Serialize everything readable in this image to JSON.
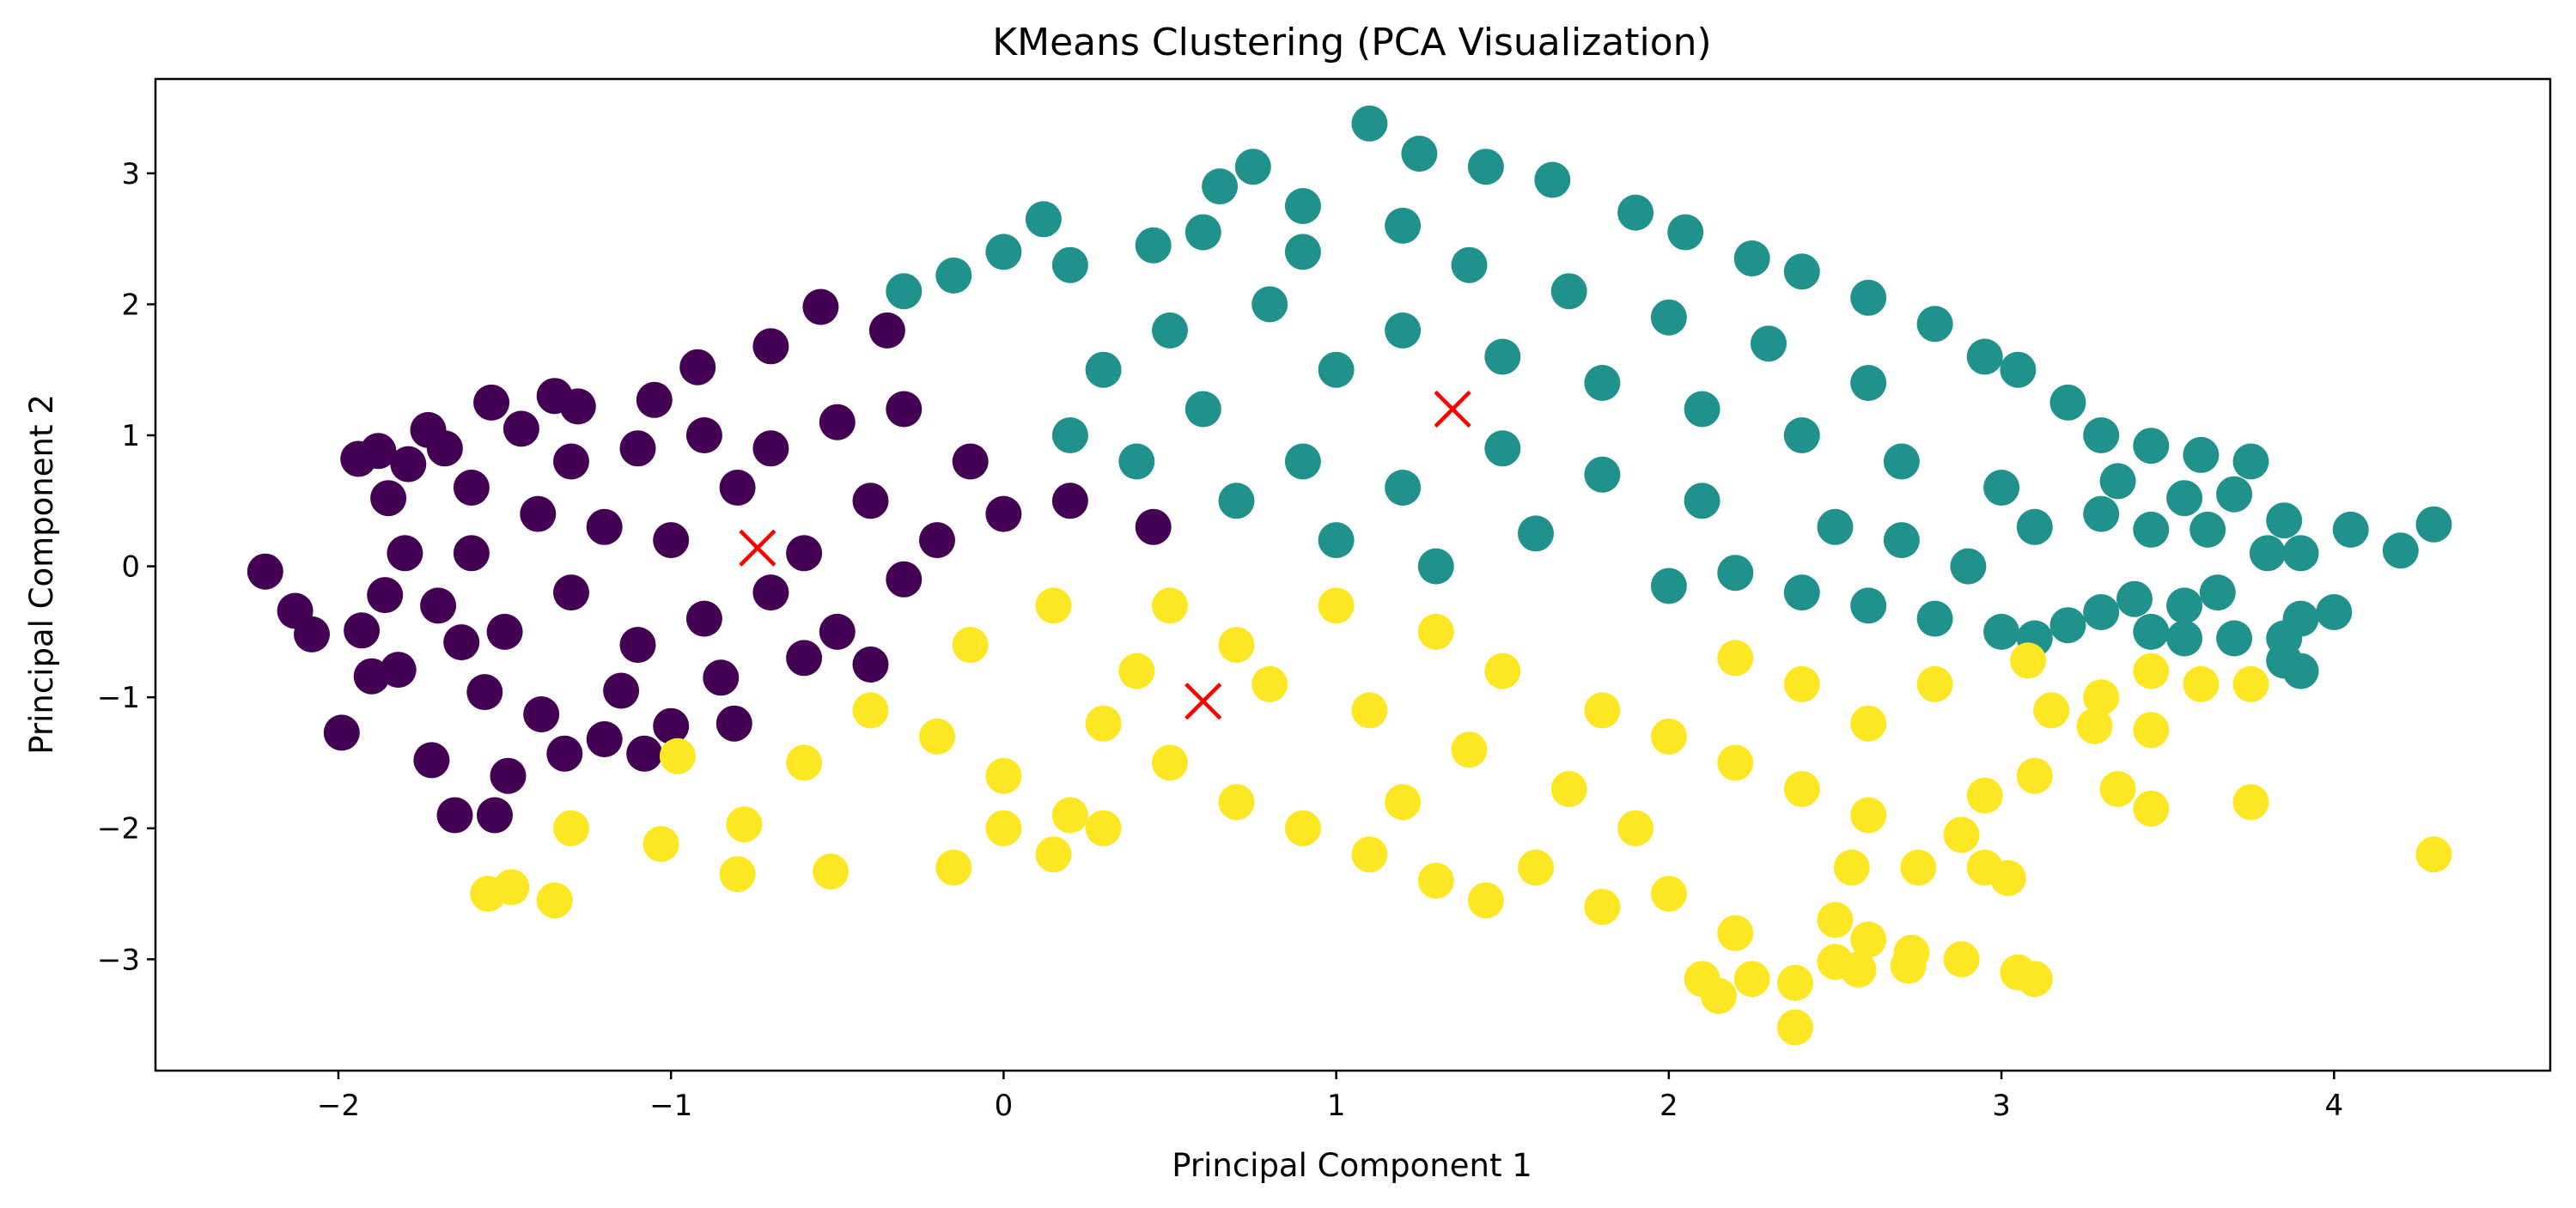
{
  "chart_data": {
    "type": "scatter",
    "title": "KMeans Clustering (PCA Visualization)",
    "xlabel": "Principal Component 1",
    "ylabel": "Principal Component 2",
    "xlim": [
      -2.55,
      4.65
    ],
    "ylim": [
      -3.85,
      3.72
    ],
    "xticks": [
      -2,
      -1,
      0,
      1,
      2,
      3,
      4
    ],
    "xtick_labels": [
      "−2",
      "−1",
      "0",
      "1",
      "2",
      "3",
      "4"
    ],
    "yticks": [
      -3,
      -2,
      -1,
      0,
      1,
      2,
      3
    ],
    "ytick_labels": [
      "−3",
      "−2",
      "−1",
      "0",
      "1",
      "2",
      "3"
    ],
    "grid": false,
    "legend": "none",
    "colors": {
      "cluster_0": "#440154",
      "cluster_1": "#21918c",
      "cluster_2": "#fde725",
      "centroid": "#ff0000"
    },
    "clusters": [
      {
        "cluster": 0,
        "color": "#440154",
        "points": [
          [
            -2.22,
            -0.04
          ],
          [
            -2.13,
            -0.34
          ],
          [
            -2.08,
            -0.52
          ],
          [
            -1.99,
            -1.27
          ],
          [
            -1.94,
            0.82
          ],
          [
            -1.93,
            -0.49
          ],
          [
            -1.9,
            -0.84
          ],
          [
            -1.88,
            0.88
          ],
          [
            -1.86,
            -0.22
          ],
          [
            -1.85,
            0.52
          ],
          [
            -1.82,
            -0.79
          ],
          [
            -1.79,
            0.78
          ],
          [
            -1.73,
            1.04
          ],
          [
            -1.72,
            -1.48
          ],
          [
            -1.68,
            0.9
          ],
          [
            -1.65,
            -1.9
          ],
          [
            -1.63,
            -0.58
          ],
          [
            -1.56,
            -0.96
          ],
          [
            -1.54,
            1.25
          ],
          [
            -1.53,
            -1.9
          ],
          [
            -1.49,
            -1.6
          ],
          [
            -1.45,
            1.05
          ],
          [
            -1.39,
            -1.13
          ],
          [
            -1.35,
            1.3
          ],
          [
            -1.32,
            -1.43
          ],
          [
            -1.28,
            1.22
          ],
          [
            -1.2,
            -1.32
          ],
          [
            -1.08,
            -1.43
          ],
          [
            -1.05,
            1.27
          ],
          [
            -1.0,
            -1.22
          ],
          [
            -0.92,
            1.52
          ],
          [
            -0.81,
            -1.2
          ],
          [
            -0.7,
            1.68
          ],
          [
            -0.55,
            1.98
          ],
          [
            -0.4,
            -0.75
          ],
          [
            -0.35,
            1.8
          ],
          [
            0.2,
            0.5
          ],
          [
            0.45,
            0.3
          ],
          [
            -1.6,
            0.6
          ],
          [
            -1.4,
            0.4
          ],
          [
            -1.2,
            0.3
          ],
          [
            -1.0,
            0.2
          ],
          [
            -0.8,
            0.6
          ],
          [
            -0.6,
            0.1
          ],
          [
            -0.4,
            0.5
          ],
          [
            -0.2,
            0.2
          ],
          [
            -1.7,
            -0.3
          ],
          [
            -1.5,
            -0.5
          ],
          [
            -1.3,
            -0.2
          ],
          [
            -1.1,
            -0.6
          ],
          [
            -0.9,
            -0.4
          ],
          [
            -0.7,
            -0.2
          ],
          [
            -0.5,
            -0.5
          ],
          [
            -0.3,
            -0.1
          ],
          [
            0.0,
            0.4
          ],
          [
            -1.1,
            0.9
          ],
          [
            -0.9,
            1.0
          ],
          [
            -0.7,
            0.9
          ],
          [
            -0.5,
            1.1
          ],
          [
            -0.3,
            1.2
          ],
          [
            -1.3,
            0.8
          ],
          [
            -0.1,
            0.8
          ],
          [
            -1.6,
            0.1
          ],
          [
            -1.8,
            0.1
          ],
          [
            -0.85,
            -0.85
          ],
          [
            -1.15,
            -0.95
          ],
          [
            -0.6,
            -0.7
          ]
        ]
      },
      {
        "cluster": 1,
        "color": "#21918c",
        "points": [
          [
            -0.3,
            2.1
          ],
          [
            -0.15,
            2.22
          ],
          [
            0.0,
            2.4
          ],
          [
            0.12,
            2.65
          ],
          [
            0.2,
            2.3
          ],
          [
            0.45,
            2.45
          ],
          [
            0.6,
            2.55
          ],
          [
            0.65,
            2.9
          ],
          [
            0.75,
            3.05
          ],
          [
            0.9,
            2.75
          ],
          [
            1.1,
            3.38
          ],
          [
            1.25,
            3.15
          ],
          [
            1.45,
            3.05
          ],
          [
            1.65,
            2.95
          ],
          [
            1.9,
            2.7
          ],
          [
            2.05,
            2.55
          ],
          [
            2.25,
            2.35
          ],
          [
            2.4,
            2.25
          ],
          [
            2.6,
            2.05
          ],
          [
            2.8,
            1.85
          ],
          [
            2.95,
            1.6
          ],
          [
            3.05,
            1.5
          ],
          [
            3.2,
            1.25
          ],
          [
            3.3,
            1.0
          ],
          [
            3.45,
            0.92
          ],
          [
            3.6,
            0.85
          ],
          [
            3.75,
            0.8
          ],
          [
            3.35,
            0.65
          ],
          [
            3.55,
            0.52
          ],
          [
            3.7,
            0.55
          ],
          [
            3.3,
            0.4
          ],
          [
            3.45,
            0.28
          ],
          [
            3.62,
            0.28
          ],
          [
            3.85,
            0.35
          ],
          [
            4.05,
            0.28
          ],
          [
            4.2,
            0.12
          ],
          [
            4.3,
            0.32
          ],
          [
            3.9,
            0.1
          ],
          [
            3.8,
            0.1
          ],
          [
            3.65,
            -0.2
          ],
          [
            3.9,
            -0.4
          ],
          [
            4.0,
            -0.35
          ],
          [
            3.85,
            -0.55
          ],
          [
            3.55,
            -0.3
          ],
          [
            3.45,
            -0.5
          ],
          [
            3.7,
            -0.55
          ],
          [
            3.55,
            -0.55
          ],
          [
            3.4,
            -0.25
          ],
          [
            3.3,
            -0.35
          ],
          [
            3.2,
            -0.45
          ],
          [
            3.0,
            -0.5
          ],
          [
            3.1,
            -0.55
          ],
          [
            3.85,
            -0.72
          ],
          [
            3.9,
            -0.8
          ],
          [
            2.5,
            0.3
          ],
          [
            2.7,
            0.2
          ],
          [
            2.9,
            0.0
          ],
          [
            3.1,
            0.3
          ],
          [
            2.6,
            -0.3
          ],
          [
            2.8,
            -0.4
          ],
          [
            2.4,
            -0.2
          ],
          [
            2.2,
            -0.05
          ],
          [
            2.0,
            -0.15
          ],
          [
            1.3,
            0.0
          ],
          [
            1.6,
            0.25
          ],
          [
            0.3,
            1.5
          ],
          [
            0.5,
            1.8
          ],
          [
            0.8,
            2.0
          ],
          [
            1.0,
            1.5
          ],
          [
            1.2,
            1.8
          ],
          [
            1.5,
            1.6
          ],
          [
            1.8,
            1.4
          ],
          [
            2.1,
            1.2
          ],
          [
            2.4,
            1.0
          ],
          [
            2.7,
            0.8
          ],
          [
            3.0,
            0.6
          ],
          [
            0.6,
            1.2
          ],
          [
            0.9,
            0.8
          ],
          [
            1.2,
            0.6
          ],
          [
            1.5,
            0.9
          ],
          [
            1.8,
            0.7
          ],
          [
            2.1,
            0.5
          ],
          [
            0.2,
            1.0
          ],
          [
            0.4,
            0.8
          ],
          [
            0.7,
            0.5
          ],
          [
            1.0,
            0.2
          ],
          [
            1.4,
            2.3
          ],
          [
            1.7,
            2.1
          ],
          [
            2.0,
            1.9
          ],
          [
            2.3,
            1.7
          ],
          [
            2.6,
            1.4
          ],
          [
            0.9,
            2.4
          ],
          [
            1.2,
            2.6
          ]
        ]
      },
      {
        "cluster": 2,
        "color": "#fde725",
        "points": [
          [
            -1.55,
            -2.5
          ],
          [
            -1.48,
            -2.45
          ],
          [
            -1.35,
            -2.55
          ],
          [
            -1.3,
            -2.0
          ],
          [
            -1.03,
            -2.12
          ],
          [
            -0.98,
            -1.45
          ],
          [
            -0.8,
            -2.35
          ],
          [
            -0.78,
            -1.97
          ],
          [
            -0.52,
            -2.33
          ],
          [
            -0.6,
            -1.5
          ],
          [
            -0.4,
            -1.1
          ],
          [
            -0.2,
            -1.3
          ],
          [
            0.0,
            -1.6
          ],
          [
            0.2,
            -1.9
          ],
          [
            -0.15,
            -2.3
          ],
          [
            0.0,
            -2.0
          ],
          [
            0.15,
            -2.2
          ],
          [
            0.3,
            -2.0
          ],
          [
            0.3,
            -1.2
          ],
          [
            0.5,
            -1.5
          ],
          [
            0.7,
            -1.8
          ],
          [
            0.9,
            -2.0
          ],
          [
            1.1,
            -2.2
          ],
          [
            1.3,
            -2.4
          ],
          [
            1.45,
            -2.55
          ],
          [
            1.6,
            -2.3
          ],
          [
            1.8,
            -2.6
          ],
          [
            2.0,
            -2.5
          ],
          [
            2.1,
            -3.15
          ],
          [
            2.15,
            -3.28
          ],
          [
            2.25,
            -3.15
          ],
          [
            2.38,
            -3.18
          ],
          [
            2.38,
            -3.52
          ],
          [
            2.5,
            -3.02
          ],
          [
            2.57,
            -3.08
          ],
          [
            2.72,
            -3.05
          ],
          [
            2.88,
            -3.0
          ],
          [
            3.05,
            -3.1
          ],
          [
            3.1,
            -3.15
          ],
          [
            2.2,
            -2.8
          ],
          [
            2.5,
            -2.7
          ],
          [
            2.6,
            -2.85
          ],
          [
            2.73,
            -2.95
          ],
          [
            2.55,
            -2.3
          ],
          [
            2.75,
            -2.3
          ],
          [
            2.95,
            -2.3
          ],
          [
            3.02,
            -2.38
          ],
          [
            2.88,
            -2.05
          ],
          [
            2.95,
            -1.75
          ],
          [
            3.1,
            -1.6
          ],
          [
            3.35,
            -1.7
          ],
          [
            3.45,
            -1.85
          ],
          [
            3.45,
            -1.25
          ],
          [
            3.6,
            -0.9
          ],
          [
            3.75,
            -0.9
          ],
          [
            3.45,
            -0.8
          ],
          [
            3.3,
            -1.0
          ],
          [
            3.15,
            -1.1
          ],
          [
            3.28,
            -1.22
          ],
          [
            3.08,
            -0.72
          ],
          [
            3.75,
            -1.8
          ],
          [
            4.3,
            -2.2
          ],
          [
            1.5,
            -0.8
          ],
          [
            1.8,
            -1.1
          ],
          [
            2.0,
            -1.3
          ],
          [
            2.2,
            -1.5
          ],
          [
            2.4,
            -1.7
          ],
          [
            2.6,
            -1.2
          ],
          [
            2.8,
            -0.9
          ],
          [
            2.4,
            -0.9
          ],
          [
            2.2,
            -0.7
          ],
          [
            2.6,
            -1.9
          ],
          [
            1.0,
            -0.3
          ],
          [
            1.3,
            -0.5
          ],
          [
            0.8,
            -0.9
          ],
          [
            1.1,
            -1.1
          ],
          [
            1.4,
            -1.4
          ],
          [
            1.7,
            -1.7
          ],
          [
            0.5,
            -0.3
          ],
          [
            0.7,
            -0.6
          ],
          [
            1.9,
            -2.0
          ],
          [
            1.2,
            -1.8
          ],
          [
            0.4,
            -0.8
          ],
          [
            -0.1,
            -0.6
          ],
          [
            0.15,
            -0.3
          ]
        ]
      }
    ],
    "centroids": [
      [
        -0.74,
        0.14
      ],
      [
        1.35,
        1.2
      ],
      [
        0.6,
        -1.03
      ]
    ]
  }
}
